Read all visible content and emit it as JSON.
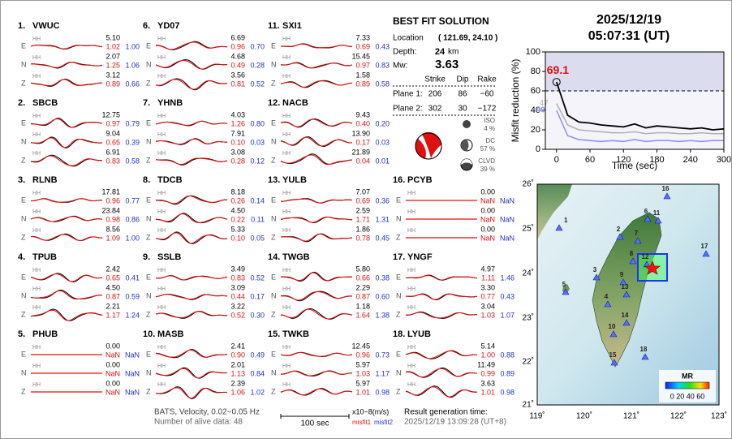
{
  "stations": [
    {
      "no": "1.",
      "name": "VWUC",
      "traces": [
        {
          "comp": "E",
          "band": "HH",
          "amp": "5.10",
          "m1": "1.02",
          "m2": "1.00"
        },
        {
          "comp": "N",
          "band": "HH",
          "amp": "2.07",
          "m1": "1.25",
          "m2": "1.06"
        },
        {
          "comp": "Z",
          "band": "HH",
          "amp": "3.12",
          "m1": "0.89",
          "m2": "0.66"
        }
      ]
    },
    {
      "no": "2.",
      "name": "SBCB",
      "traces": [
        {
          "comp": "E",
          "band": "HH",
          "amp": "12.75",
          "m1": "0.97",
          "m2": "0.79"
        },
        {
          "comp": "N",
          "band": "HH",
          "amp": "9.04",
          "m1": "0.65",
          "m2": "0.39"
        },
        {
          "comp": "Z",
          "band": "HH",
          "amp": "6.91",
          "m1": "0.83",
          "m2": "0.58"
        }
      ]
    },
    {
      "no": "3.",
      "name": "RLNB",
      "traces": [
        {
          "comp": "E",
          "band": "HH",
          "amp": "17.81",
          "m1": "0.96",
          "m2": "0.77"
        },
        {
          "comp": "N",
          "band": "HH",
          "amp": "23.84",
          "m1": "0.98",
          "m2": "0.86"
        },
        {
          "comp": "Z",
          "band": "HH",
          "amp": "8.56",
          "m1": "1.09",
          "m2": "1.00"
        }
      ]
    },
    {
      "no": "4.",
      "name": "TPUB",
      "traces": [
        {
          "comp": "E",
          "band": "HH",
          "amp": "2.42",
          "m1": "0.65",
          "m2": "0.41"
        },
        {
          "comp": "N",
          "band": "HH",
          "amp": "4.50",
          "m1": "0.87",
          "m2": "0.59"
        },
        {
          "comp": "Z",
          "band": "HH",
          "amp": "2.21",
          "m1": "1.17",
          "m2": "1.24"
        }
      ]
    },
    {
      "no": "5.",
      "name": "PHUB",
      "traces": [
        {
          "comp": "E",
          "band": "HH",
          "amp": "0.00",
          "m1": "NaN",
          "m2": "NaN"
        },
        {
          "comp": "N",
          "band": "HH",
          "amp": "0.00",
          "m1": "NaN",
          "m2": "NaN"
        },
        {
          "comp": "Z",
          "band": "HH",
          "amp": "0.00",
          "m1": "NaN",
          "m2": "NaN"
        }
      ]
    },
    {
      "no": "6.",
      "name": "YD07",
      "traces": [
        {
          "comp": "E",
          "band": "HH",
          "amp": "6.69",
          "m1": "0.96",
          "m2": "0.70"
        },
        {
          "comp": "N",
          "band": "HH",
          "amp": "4.68",
          "m1": "0.49",
          "m2": "0.28"
        },
        {
          "comp": "Z",
          "band": "HH",
          "amp": "3.56",
          "m1": "0.81",
          "m2": "0.52"
        }
      ]
    },
    {
      "no": "7.",
      "name": "YHNB",
      "traces": [
        {
          "comp": "E",
          "band": "HH",
          "amp": "4.03",
          "m1": "1.26",
          "m2": "0.80"
        },
        {
          "comp": "N",
          "band": "HH",
          "amp": "7.91",
          "m1": "0.10",
          "m2": "0.03"
        },
        {
          "comp": "Z",
          "band": "HH",
          "amp": "3.08",
          "m1": "0.28",
          "m2": "0.12"
        }
      ]
    },
    {
      "no": "8.",
      "name": "TDCB",
      "traces": [
        {
          "comp": "E",
          "band": "HH",
          "amp": "8.18",
          "m1": "0.26",
          "m2": "0.14"
        },
        {
          "comp": "N",
          "band": "HH",
          "amp": "4.50",
          "m1": "0.22",
          "m2": "0.11"
        },
        {
          "comp": "Z",
          "band": "HH",
          "amp": "5.33",
          "m1": "0.10",
          "m2": "0.05"
        }
      ]
    },
    {
      "no": "9.",
      "name": "SSLB",
      "traces": [
        {
          "comp": "E",
          "band": "HH",
          "amp": "3.49",
          "m1": "0.83",
          "m2": "0.52"
        },
        {
          "comp": "N",
          "band": "HH",
          "amp": "3.09",
          "m1": "0.44",
          "m2": "0.17"
        },
        {
          "comp": "Z",
          "band": "HH",
          "amp": "3.22",
          "m1": "0.52",
          "m2": "0.30"
        }
      ]
    },
    {
      "no": "10.",
      "name": "MASB",
      "traces": [
        {
          "comp": "E",
          "band": "HH",
          "amp": "2.41",
          "m1": "0.90",
          "m2": "0.49"
        },
        {
          "comp": "N",
          "band": "HH",
          "amp": "2.01",
          "m1": "1.13",
          "m2": "0.84"
        },
        {
          "comp": "Z",
          "band": "HH",
          "amp": "2.39",
          "m1": "1.06",
          "m2": "1.02"
        }
      ]
    },
    {
      "no": "11.",
      "name": "SXI1",
      "traces": [
        {
          "comp": "E",
          "band": "HH",
          "amp": "7.33",
          "m1": "0.69",
          "m2": "0.43"
        },
        {
          "comp": "N",
          "band": "HH",
          "amp": "15.45",
          "m1": "0.97",
          "m2": "0.83"
        },
        {
          "comp": "Z",
          "band": "HH",
          "amp": "1.58",
          "m1": "0.89",
          "m2": "0.58"
        }
      ]
    },
    {
      "no": "12.",
      "name": "NACB",
      "traces": [
        {
          "comp": "E",
          "band": "HH",
          "amp": "9.43",
          "m1": "0.40",
          "m2": "0.20"
        },
        {
          "comp": "N",
          "band": "HH",
          "amp": "13.90",
          "m1": "0.17",
          "m2": "0.03"
        },
        {
          "comp": "Z",
          "band": "HH",
          "amp": "21.89",
          "m1": "0.04",
          "m2": "0.01"
        }
      ]
    },
    {
      "no": "13.",
      "name": "YULB",
      "traces": [
        {
          "comp": "E",
          "band": "HH",
          "amp": "7.07",
          "m1": "0.69",
          "m2": "0.36"
        },
        {
          "comp": "N",
          "band": "HH",
          "amp": "2.59",
          "m1": "1.71",
          "m2": "1.31"
        },
        {
          "comp": "Z",
          "band": "HH",
          "amp": "1.86",
          "m1": "0.78",
          "m2": "0.45"
        }
      ]
    },
    {
      "no": "14.",
      "name": "TWGB",
      "traces": [
        {
          "comp": "E",
          "band": "HH",
          "amp": "5.80",
          "m1": "0.66",
          "m2": "0.38"
        },
        {
          "comp": "N",
          "band": "HH",
          "amp": "2.29",
          "m1": "0.87",
          "m2": "0.60"
        },
        {
          "comp": "Z",
          "band": "HH",
          "amp": "1.18",
          "m1": "1.64",
          "m2": "1.38"
        }
      ]
    },
    {
      "no": "15.",
      "name": "TWKB",
      "traces": [
        {
          "comp": "E",
          "band": "HH",
          "amp": "12.45",
          "m1": "0.96",
          "m2": "0.73"
        },
        {
          "comp": "N",
          "band": "HH",
          "amp": "5.97",
          "m1": "1.03",
          "m2": "1.17"
        },
        {
          "comp": "Z",
          "band": "HH",
          "amp": "5.97",
          "m1": "1.01",
          "m2": "0.98"
        }
      ]
    },
    {
      "no": "16.",
      "name": "PCYB",
      "traces": [
        {
          "comp": "E",
          "band": "HH",
          "amp": "0.00",
          "m1": "NaN",
          "m2": "NaN"
        },
        {
          "comp": "N",
          "band": "HH",
          "amp": "0.00",
          "m1": "NaN",
          "m2": "NaN"
        },
        {
          "comp": "Z",
          "band": "HH",
          "amp": "0.00",
          "m1": "NaN",
          "m2": "NaN"
        }
      ]
    },
    {
      "no": "17.",
      "name": "YNGF",
      "traces": [
        {
          "comp": "E",
          "band": "HH",
          "amp": "4.97",
          "m1": "1.11",
          "m2": "1.46"
        },
        {
          "comp": "N",
          "band": "HH",
          "amp": "3.30",
          "m1": "0.77",
          "m2": "0.43"
        },
        {
          "comp": "Z",
          "band": "HH",
          "amp": "3.04",
          "m1": "1.03",
          "m2": "1.07"
        }
      ]
    },
    {
      "no": "18.",
      "name": "LYUB",
      "traces": [
        {
          "comp": "E",
          "band": "HH",
          "amp": "5.14",
          "m1": "1.00",
          "m2": "0.88"
        },
        {
          "comp": "N",
          "band": "HH",
          "amp": "11.49",
          "m1": "0.99",
          "m2": "0.89"
        },
        {
          "comp": "Z",
          "band": "HH",
          "amp": "3.63",
          "m1": "1.01",
          "m2": "0.98"
        }
      ]
    }
  ],
  "solution": {
    "title": "BEST FIT SOLUTION",
    "location_label": "Location",
    "location": "( 121.69,  24.10 )",
    "depth_label": "Depth:",
    "depth": "24",
    "depth_unit": "km",
    "mw_label": "Mw:",
    "mw": "3.63",
    "headers": [
      "Strike",
      "Dip",
      "Rake"
    ],
    "planes": [
      {
        "label": "Plane 1:",
        "values": [
          "206",
          "86",
          "−60"
        ]
      },
      {
        "label": "Plane 2:",
        "values": [
          "302",
          "30",
          "−172"
        ]
      }
    ],
    "components": [
      {
        "name": "ISO",
        "pct": "4 %"
      },
      {
        "name": "DC",
        "pct": "57 %"
      },
      {
        "name": "CLVD",
        "pct": "39 %"
      }
    ]
  },
  "datetime": {
    "date": "2025/12/19",
    "time": "05:07:31  (UT)"
  },
  "chart_data": {
    "type": "line",
    "ylabel": "Misfit reduction (%)",
    "xlabel": "Time (sec)",
    "x": [
      0,
      20,
      40,
      60,
      80,
      100,
      120,
      140,
      160,
      180,
      200,
      220,
      240,
      260,
      280,
      300
    ],
    "series": [
      {
        "color": "#000000",
        "values": [
          69.1,
          35,
          28,
          27,
          25,
          24,
          23,
          26,
          22,
          24,
          23,
          22,
          21,
          22,
          20,
          21
        ]
      },
      {
        "color": "#b0b0b0",
        "values": [
          47,
          25,
          20,
          19,
          18,
          17,
          17,
          18,
          16,
          17,
          17,
          16,
          16,
          17,
          16,
          16
        ]
      },
      {
        "color": "#8a8ef0",
        "values": [
          40,
          14,
          10,
          9,
          8,
          9,
          8,
          10,
          8,
          9,
          9,
          8,
          9,
          8,
          9,
          9
        ]
      }
    ],
    "annotations": [
      "69.1",
      "47",
      "40"
    ],
    "reference_line": 60,
    "xlim": [
      -20,
      300
    ],
    "ylim": [
      0,
      100
    ],
    "xticks": [
      0,
      60,
      120,
      180,
      240,
      300
    ],
    "yticks": [
      0,
      20,
      40,
      60,
      80,
      100
    ]
  },
  "map": {
    "lon_labels": [
      "119˚",
      "120˚",
      "121˚",
      "122˚",
      "123˚"
    ],
    "lat_labels": [
      "26˚",
      "25˚",
      "24˚",
      "23˚",
      "22˚",
      "21˚"
    ],
    "station_labels": [
      "1",
      "2",
      "3",
      "4",
      "5",
      "6",
      "7",
      "8",
      "9",
      "10",
      "11",
      "12",
      "13",
      "14",
      "15",
      "16",
      "17",
      "18"
    ],
    "colorbar_title": "MR",
    "colorbar_ticks": "0 20 40 60"
  },
  "footer": {
    "line1": "BATS, Velocity, 0.02−0.05 Hz",
    "line2": "Number of alive data: 48",
    "scale": "100 sec",
    "units": "x10−8(m/s)",
    "misfit1": "misfit1",
    "misfit2": "misfit2",
    "gen_label": "Result generation time:",
    "gen_time": "2025/12/19 13:09:28 (UT+8)"
  }
}
